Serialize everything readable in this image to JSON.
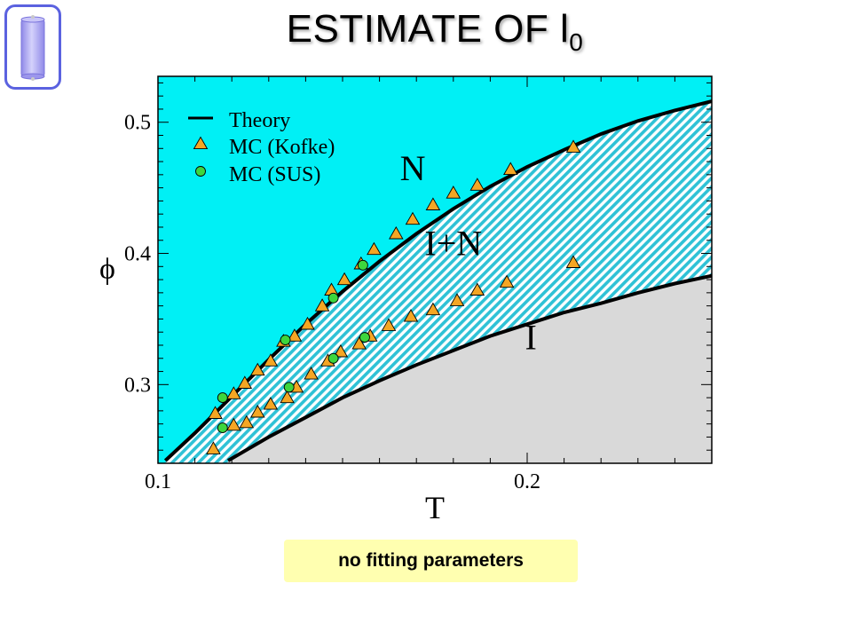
{
  "slide": {
    "title_main": "ESTIMATE OF l",
    "title_sub": "0",
    "note": "no fitting parameters",
    "logo_icon": "capacitor-cylinder-icon"
  },
  "colors": {
    "nematic": "#00f0f5",
    "coexistence_hatch": "#2fc2d6",
    "isotropic": "#d9d9d9",
    "kofke_marker": "#f5a623",
    "sus_marker": "#3dd63d",
    "theory_line": "#000000",
    "logo_border": "#5b62e0",
    "logo_fill": "#a9a5f2",
    "note_background": "#ffffb0"
  },
  "chart_data": {
    "type": "scatter",
    "xlabel": "T",
    "ylabel": "ϕ",
    "xlim": [
      0.1,
      0.25
    ],
    "ylim": [
      0.24,
      0.535
    ],
    "xticks": [
      0.1,
      0.2
    ],
    "yticks": [
      0.3,
      0.4,
      0.5
    ],
    "grid": false,
    "legend_position": "top-left",
    "region_labels": [
      {
        "text": "N",
        "x": 0.169,
        "y": 0.462
      },
      {
        "text": "I+N",
        "x": 0.18,
        "y": 0.405
      },
      {
        "text": "I",
        "x": 0.201,
        "y": 0.333
      }
    ],
    "series": [
      {
        "name": "Theory",
        "kind": "line",
        "boundaries": [
          {
            "x": [
              0.102,
              0.11,
              0.12,
              0.13,
              0.14,
              0.15,
              0.16,
              0.17,
              0.18,
              0.19,
              0.2,
              0.21,
              0.22,
              0.23,
              0.24,
              0.25
            ],
            "y": [
              0.242,
              0.263,
              0.291,
              0.319,
              0.346,
              0.371,
              0.394,
              0.415,
              0.434,
              0.451,
              0.466,
              0.479,
              0.491,
              0.501,
              0.509,
              0.516
            ]
          },
          {
            "x": [
              0.119,
              0.13,
              0.14,
              0.15,
              0.16,
              0.17,
              0.18,
              0.19,
              0.2,
              0.21,
              0.22,
              0.23,
              0.24,
              0.25
            ],
            "y": [
              0.242,
              0.26,
              0.275,
              0.29,
              0.303,
              0.315,
              0.326,
              0.337,
              0.346,
              0.355,
              0.362,
              0.37,
              0.377,
              0.383
            ]
          }
        ]
      },
      {
        "name": "MC (Kofke)",
        "kind": "scatter",
        "x": [
          0.1155,
          0.1205,
          0.1235,
          0.127,
          0.1305,
          0.134,
          0.137,
          0.1405,
          0.1445,
          0.147,
          0.1505,
          0.155,
          0.1585,
          0.1645,
          0.169,
          0.1745,
          0.18,
          0.1865,
          0.1955,
          0.2125,
          0.115,
          0.1205,
          0.124,
          0.127,
          0.1305,
          0.135,
          0.1375,
          0.1415,
          0.146,
          0.1495,
          0.1545,
          0.1575,
          0.1625,
          0.1685,
          0.1745,
          0.181,
          0.1865,
          0.1945,
          0.2125
        ],
        "y": [
          0.278,
          0.293,
          0.301,
          0.311,
          0.318,
          0.333,
          0.337,
          0.346,
          0.36,
          0.372,
          0.38,
          0.392,
          0.403,
          0.415,
          0.426,
          0.437,
          0.446,
          0.452,
          0.464,
          0.481,
          0.251,
          0.269,
          0.271,
          0.279,
          0.285,
          0.29,
          0.298,
          0.308,
          0.318,
          0.325,
          0.331,
          0.337,
          0.345,
          0.352,
          0.357,
          0.364,
          0.372,
          0.378,
          0.393
        ]
      },
      {
        "name": "MC (SUS)",
        "kind": "scatter",
        "x": [
          0.1175,
          0.1175,
          0.1345,
          0.1355,
          0.1475,
          0.1475,
          0.1555,
          0.156
        ],
        "y": [
          0.29,
          0.267,
          0.334,
          0.298,
          0.366,
          0.32,
          0.391,
          0.336
        ]
      }
    ]
  }
}
